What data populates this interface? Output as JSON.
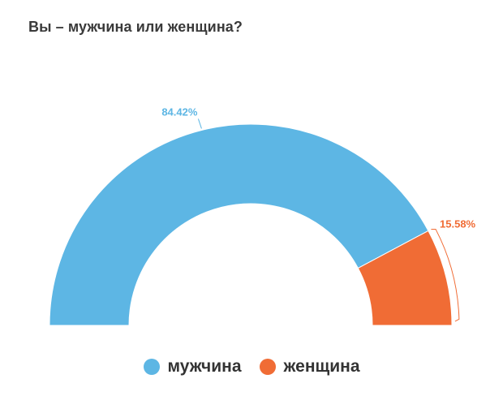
{
  "chart_data": {
    "type": "pie",
    "variant": "semi-donut",
    "title": "Вы – мужчина или женщина?",
    "categories": [
      "мужчина",
      "женщина"
    ],
    "values": [
      84.42,
      15.58
    ],
    "data_labels": [
      "84.42%",
      "15.58%"
    ],
    "colors": [
      "#5db6e4",
      "#f06c35"
    ],
    "legend_position": "bottom-center"
  }
}
